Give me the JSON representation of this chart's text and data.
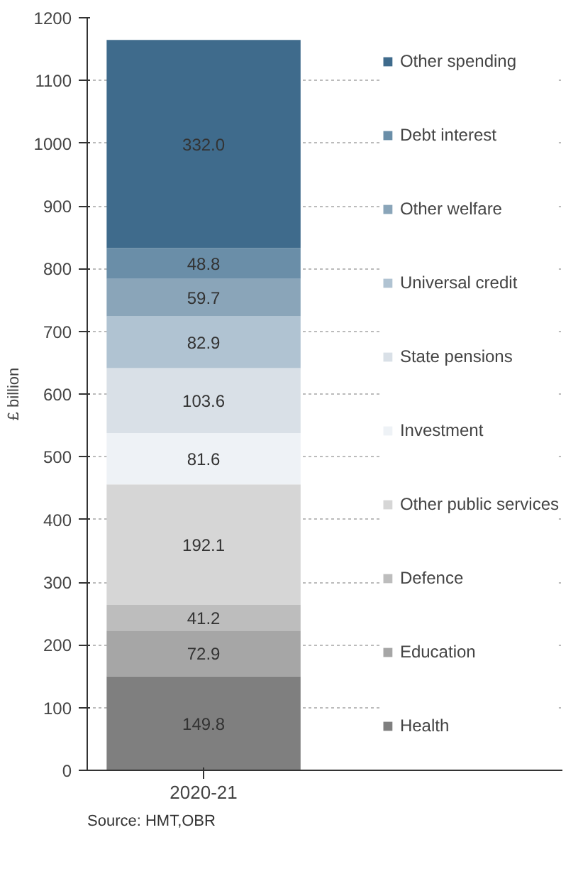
{
  "chart_data": {
    "type": "bar",
    "stacked": true,
    "ylabel": "£ billion",
    "categories": [
      "2020-21"
    ],
    "ylim": [
      0,
      1200
    ],
    "yticks": [
      0,
      100,
      200,
      300,
      400,
      500,
      600,
      700,
      800,
      900,
      1000,
      1100,
      1200
    ],
    "grid": "y",
    "legend": "right",
    "annotations": [
      "Source: HMT,OBR"
    ],
    "series": [
      {
        "name": "Health",
        "color": "#7f7f7f",
        "values": [
          149.8
        ],
        "value_labels": [
          "149.8"
        ]
      },
      {
        "name": "Education",
        "color": "#a6a6a6",
        "values": [
          72.9
        ],
        "value_labels": [
          "72.9"
        ]
      },
      {
        "name": "Defence",
        "color": "#bdbdbd",
        "values": [
          41.2
        ],
        "value_labels": [
          "41.2"
        ]
      },
      {
        "name": "Other public services",
        "color": "#d6d6d6",
        "values": [
          192.1
        ],
        "value_labels": [
          "192.1"
        ]
      },
      {
        "name": "Investment",
        "color": "#eef2f6",
        "values": [
          81.6
        ],
        "value_labels": [
          "81.6"
        ]
      },
      {
        "name": "State pensions",
        "color": "#d9e0e7",
        "values": [
          103.6
        ],
        "value_labels": [
          "103.6"
        ]
      },
      {
        "name": "Universal credit",
        "color": "#b0c3d2",
        "values": [
          82.9
        ],
        "value_labels": [
          "82.9"
        ]
      },
      {
        "name": "Other welfare",
        "color": "#8aa5b9",
        "values": [
          59.7
        ],
        "value_labels": [
          "59.7"
        ]
      },
      {
        "name": "Debt interest",
        "color": "#6a8ea8",
        "values": [
          48.8
        ],
        "value_labels": [
          "48.8"
        ]
      },
      {
        "name": "Other spending",
        "color": "#3f6b8c",
        "values": [
          332.0
        ],
        "value_labels": [
          "332.0"
        ]
      }
    ]
  }
}
